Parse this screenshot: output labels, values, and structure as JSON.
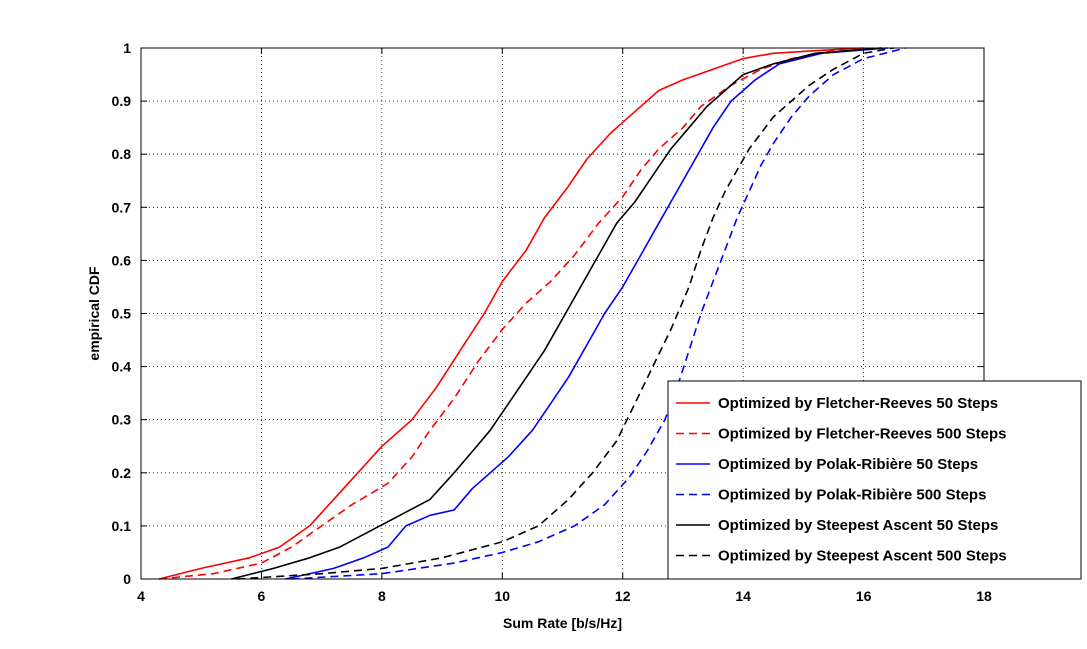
{
  "chart_data": {
    "type": "line",
    "xlabel": "Sum Rate [b/s/Hz]",
    "ylabel": "empirical CDF",
    "xlim": [
      4,
      18
    ],
    "ylim": [
      0,
      1
    ],
    "x_ticks": [
      "4",
      "6",
      "8",
      "10",
      "12",
      "14",
      "16",
      "18"
    ],
    "y_ticks": [
      "0",
      "0.1",
      "0.2",
      "0.3",
      "0.4",
      "0.5",
      "0.6",
      "0.7",
      "0.8",
      "0.9",
      "1"
    ],
    "grid": true,
    "legend_position": "bottom-right",
    "series": [
      {
        "name": "Optimized by Fletcher-Reeves 50 Steps",
        "color": "#ff0000",
        "dash": "solid",
        "x": [
          4.3,
          5.0,
          5.8,
          6.3,
          6.8,
          7.2,
          7.6,
          8.0,
          8.5,
          8.9,
          9.3,
          9.7,
          10.0,
          10.4,
          10.7,
          11.1,
          11.4,
          11.8,
          12.2,
          12.6,
          13.0,
          13.5,
          14.0,
          14.5,
          15.2,
          16.0
        ],
        "y": [
          0.0,
          0.02,
          0.04,
          0.06,
          0.1,
          0.15,
          0.2,
          0.25,
          0.3,
          0.36,
          0.43,
          0.5,
          0.56,
          0.62,
          0.68,
          0.74,
          0.79,
          0.84,
          0.88,
          0.92,
          0.94,
          0.96,
          0.98,
          0.99,
          0.995,
          1.0
        ]
      },
      {
        "name": "Optimized by Fletcher-Reeves 500 Steps",
        "color": "#ff0000",
        "dash": "dashed",
        "x": [
          4.3,
          5.2,
          6.0,
          6.5,
          7.0,
          7.5,
          8.1,
          8.5,
          8.8,
          9.2,
          9.6,
          10.0,
          10.4,
          10.8,
          11.2,
          11.6,
          12.0,
          12.3,
          12.6,
          13.0,
          13.3,
          13.8,
          14.3,
          14.8,
          15.5,
          16.3
        ],
        "y": [
          0.0,
          0.01,
          0.03,
          0.06,
          0.1,
          0.14,
          0.18,
          0.23,
          0.28,
          0.34,
          0.41,
          0.47,
          0.52,
          0.56,
          0.61,
          0.67,
          0.72,
          0.77,
          0.81,
          0.85,
          0.89,
          0.93,
          0.96,
          0.98,
          0.995,
          1.0
        ]
      },
      {
        "name": "Optimized by Polak-Ribière 50 Steps",
        "color": "#0000ff",
        "dash": "solid",
        "x": [
          6.4,
          7.2,
          7.7,
          8.1,
          8.4,
          8.8,
          9.2,
          9.5,
          9.8,
          10.1,
          10.5,
          10.8,
          11.1,
          11.4,
          11.7,
          12.0,
          12.3,
          12.6,
          12.9,
          13.2,
          13.5,
          13.8,
          14.2,
          14.6,
          15.3,
          16.4
        ],
        "y": [
          0.0,
          0.02,
          0.04,
          0.06,
          0.1,
          0.12,
          0.13,
          0.17,
          0.2,
          0.23,
          0.28,
          0.33,
          0.38,
          0.44,
          0.5,
          0.55,
          0.61,
          0.67,
          0.73,
          0.79,
          0.85,
          0.9,
          0.94,
          0.97,
          0.99,
          1.0
        ]
      },
      {
        "name": "Optimized by Polak-Ribière 500 Steps",
        "color": "#0000ff",
        "dash": "dashed",
        "x": [
          6.5,
          8.0,
          9.2,
          10.0,
          10.6,
          11.2,
          11.7,
          12.1,
          12.4,
          12.7,
          12.9,
          13.1,
          13.3,
          13.5,
          13.7,
          13.9,
          14.1,
          14.3,
          14.5,
          14.8,
          15.1,
          15.5,
          16.0,
          16.7
        ],
        "y": [
          0.0,
          0.01,
          0.03,
          0.05,
          0.07,
          0.1,
          0.14,
          0.19,
          0.24,
          0.3,
          0.36,
          0.43,
          0.5,
          0.56,
          0.62,
          0.68,
          0.73,
          0.78,
          0.82,
          0.87,
          0.91,
          0.95,
          0.98,
          1.0
        ]
      },
      {
        "name": "Optimized by Steepest Ascent 50 Steps",
        "color": "#000000",
        "dash": "solid",
        "x": [
          5.5,
          6.2,
          6.8,
          7.3,
          7.8,
          8.3,
          8.8,
          9.2,
          9.5,
          9.8,
          10.1,
          10.4,
          10.7,
          11.0,
          11.3,
          11.6,
          11.9,
          12.2,
          12.5,
          12.8,
          13.1,
          13.4,
          13.7,
          14.0,
          14.5,
          15.2,
          16.3
        ],
        "y": [
          0.0,
          0.02,
          0.04,
          0.06,
          0.09,
          0.12,
          0.15,
          0.2,
          0.24,
          0.28,
          0.33,
          0.38,
          0.43,
          0.49,
          0.55,
          0.61,
          0.67,
          0.71,
          0.76,
          0.81,
          0.85,
          0.89,
          0.92,
          0.95,
          0.97,
          0.99,
          1.0
        ]
      },
      {
        "name": "Optimized by Steepest Ascent 500 Steps",
        "color": "#000000",
        "dash": "dashed",
        "x": [
          5.6,
          7.0,
          8.0,
          9.0,
          10.0,
          10.6,
          11.1,
          11.5,
          11.9,
          12.2,
          12.5,
          12.8,
          13.1,
          13.3,
          13.5,
          13.7,
          13.9,
          14.1,
          14.3,
          14.5,
          14.8,
          15.1,
          15.5,
          16.0,
          16.5
        ],
        "y": [
          0.0,
          0.01,
          0.02,
          0.04,
          0.07,
          0.1,
          0.15,
          0.2,
          0.26,
          0.33,
          0.4,
          0.47,
          0.55,
          0.62,
          0.68,
          0.73,
          0.77,
          0.81,
          0.84,
          0.87,
          0.9,
          0.93,
          0.96,
          0.99,
          1.0
        ]
      }
    ]
  }
}
